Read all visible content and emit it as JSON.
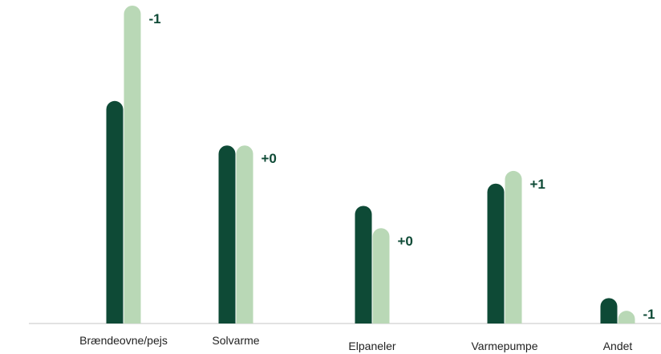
{
  "colors": {
    "series_dark": "#0e4a36",
    "series_light": "#b9d8b6",
    "baseline": "#d9d9d9",
    "delta_text": "#0e4a36"
  },
  "chart_data": {
    "type": "bar",
    "title": "",
    "xlabel": "",
    "ylabel": "",
    "ylim": [
      0,
      100
    ],
    "grid": false,
    "categories": [
      "Brændeovne/pejs",
      "Solvarme",
      "Elpaneler",
      "Varmepumpe",
      "Andet"
    ],
    "series": [
      {
        "values": [
          70,
          56,
          37,
          44,
          8
        ]
      },
      {
        "values": [
          100,
          56,
          30,
          48,
          4
        ]
      }
    ],
    "annotations": [
      "-1",
      "+0",
      "+0",
      "+1",
      "-1"
    ]
  }
}
